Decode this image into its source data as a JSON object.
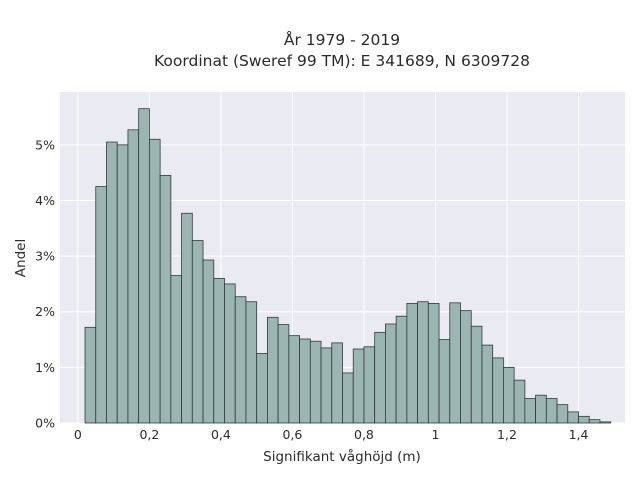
{
  "chart_data": {
    "type": "bar",
    "title": "År 1979 - 2019",
    "subtitle": "Koordinat (Sweref 99 TM): E 341689, N 6309728",
    "xlabel": "Signifikant våghöjd (m)",
    "ylabel": "Andel",
    "xlim": [
      -0.05,
      1.53
    ],
    "ylim": [
      0,
      5.95
    ],
    "x_ticks": [
      0,
      0.2,
      0.4,
      0.6,
      0.8,
      1.0,
      1.2,
      1.4
    ],
    "x_tick_labels": [
      "0",
      "0,2",
      "0,4",
      "0,6",
      "0,8",
      "1",
      "1,2",
      "1,4"
    ],
    "y_ticks": [
      0,
      1,
      2,
      3,
      4,
      5
    ],
    "y_tick_labels": [
      "0%",
      "1%",
      "2%",
      "3%",
      "4%",
      "5%"
    ],
    "grid": true,
    "bin_start": 0.02,
    "bin_width": 0.03,
    "values": [
      1.72,
      4.25,
      5.05,
      5.0,
      5.27,
      5.65,
      5.1,
      4.45,
      2.65,
      3.77,
      3.28,
      2.93,
      2.6,
      2.5,
      2.27,
      2.18,
      1.25,
      1.9,
      1.77,
      1.57,
      1.51,
      1.47,
      1.35,
      1.44,
      0.9,
      1.33,
      1.37,
      1.63,
      1.78,
      1.92,
      2.15,
      2.18,
      2.15,
      1.5,
      2.16,
      2.02,
      1.74,
      1.4,
      1.17,
      1.0,
      0.77,
      0.44,
      0.5,
      0.44,
      0.33,
      0.2,
      0.12,
      0.06,
      0.02
    ]
  },
  "colors": {
    "bar_fill": "#9bb5b3",
    "bar_edge": "#2f3b3a",
    "plot_background": "#eaeaf2"
  }
}
